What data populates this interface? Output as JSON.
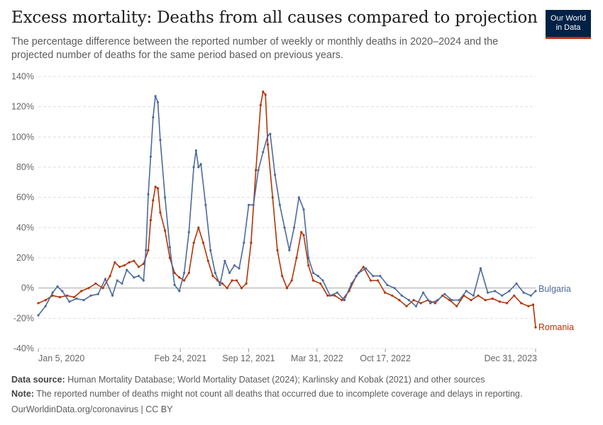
{
  "title": "Excess mortality: Deaths from all causes compared to projection",
  "subtitle": "The percentage difference between the reported number of weekly or monthly deaths in 2020–2024 and the projected number of deaths for the same period based on previous years.",
  "logo": {
    "line1": "Our World",
    "line2": "in Data"
  },
  "footer": {
    "source_label": "Data source:",
    "source_text": "Human Mortality Database; World Mortality Dataset (2024); Karlinsky and Kobak (2021) and other sources",
    "note_label": "Note:",
    "note_text": "The reported number of deaths might not count all deaths that occurred due to incomplete coverage and delays in reporting.",
    "url": "OurWorldinData.org/coronavirus | CC BY"
  },
  "colors": {
    "bulgaria": "#4c6a9c",
    "romania": "#b13507",
    "grid": "#dddddd",
    "zero": "#a8a8a8"
  },
  "chart_data": {
    "type": "line",
    "title": "Excess mortality: Deaths from all causes compared to projection",
    "xlabel": "",
    "ylabel": "",
    "ylim": [
      -40,
      140
    ],
    "xlim": [
      "2020-01-05",
      "2023-12-31"
    ],
    "y_ticks": [
      "140%",
      "120%",
      "100%",
      "80%",
      "60%",
      "40%",
      "20%",
      "0%",
      "-20%",
      "-40%"
    ],
    "x_ticks": [
      {
        "date": "2020-01-05",
        "label": "Jan 5, 2020"
      },
      {
        "date": "2021-02-24",
        "label": "Feb 24, 2021"
      },
      {
        "date": "2021-09-12",
        "label": "Sep 12, 2021"
      },
      {
        "date": "2022-03-31",
        "label": "Mar 31, 2022"
      },
      {
        "date": "2022-10-17",
        "label": "Oct 17, 2022"
      },
      {
        "date": "2023-12-31",
        "label": "Dec 31, 2023"
      }
    ],
    "grid": true,
    "legend": "line-end labels",
    "series": [
      {
        "name": "Bulgaria",
        "points": [
          [
            "2020-01-05",
            -18
          ],
          [
            "2020-01-26",
            -12
          ],
          [
            "2020-02-16",
            -3
          ],
          [
            "2020-03-01",
            1
          ],
          [
            "2020-03-15",
            -2
          ],
          [
            "2020-04-05",
            -9
          ],
          [
            "2020-04-26",
            -7
          ],
          [
            "2020-05-17",
            -8
          ],
          [
            "2020-06-07",
            -5
          ],
          [
            "2020-06-28",
            -4
          ],
          [
            "2020-07-19",
            6
          ],
          [
            "2020-08-09",
            -5
          ],
          [
            "2020-08-23",
            5
          ],
          [
            "2020-09-06",
            3
          ],
          [
            "2020-09-20",
            12
          ],
          [
            "2020-10-11",
            7
          ],
          [
            "2020-10-25",
            8
          ],
          [
            "2020-11-08",
            5
          ],
          [
            "2020-11-15",
            25
          ],
          [
            "2020-11-22",
            62
          ],
          [
            "2020-11-29",
            87
          ],
          [
            "2020-12-06",
            113
          ],
          [
            "2020-12-13",
            127
          ],
          [
            "2020-12-20",
            123
          ],
          [
            "2020-12-27",
            98
          ],
          [
            "2021-01-10",
            60
          ],
          [
            "2021-01-24",
            27
          ],
          [
            "2021-02-07",
            2
          ],
          [
            "2021-02-21",
            -2
          ],
          [
            "2021-03-07",
            10
          ],
          [
            "2021-03-21",
            37
          ],
          [
            "2021-04-04",
            80
          ],
          [
            "2021-04-11",
            91
          ],
          [
            "2021-04-18",
            80
          ],
          [
            "2021-04-25",
            82
          ],
          [
            "2021-05-09",
            55
          ],
          [
            "2021-05-23",
            25
          ],
          [
            "2021-06-06",
            10
          ],
          [
            "2021-06-20",
            2
          ],
          [
            "2021-07-04",
            18
          ],
          [
            "2021-07-18",
            10
          ],
          [
            "2021-08-01",
            15
          ],
          [
            "2021-08-15",
            13
          ],
          [
            "2021-08-29",
            30
          ],
          [
            "2021-09-12",
            55
          ],
          [
            "2021-09-26",
            55
          ],
          [
            "2021-10-10",
            78
          ],
          [
            "2021-10-24",
            90
          ],
          [
            "2021-11-07",
            101
          ],
          [
            "2021-11-14",
            102
          ],
          [
            "2021-11-28",
            75
          ],
          [
            "2021-12-12",
            55
          ],
          [
            "2021-12-26",
            40
          ],
          [
            "2022-01-09",
            25
          ],
          [
            "2022-01-23",
            40
          ],
          [
            "2022-02-06",
            60
          ],
          [
            "2022-02-20",
            52
          ],
          [
            "2022-03-06",
            20
          ],
          [
            "2022-03-20",
            10
          ],
          [
            "2022-04-03",
            8
          ],
          [
            "2022-04-17",
            5
          ],
          [
            "2022-05-08",
            -5
          ],
          [
            "2022-05-29",
            -3
          ],
          [
            "2022-06-19",
            -8
          ],
          [
            "2022-07-10",
            3
          ],
          [
            "2022-07-31",
            10
          ],
          [
            "2022-08-21",
            13
          ],
          [
            "2022-09-11",
            8
          ],
          [
            "2022-10-02",
            8
          ],
          [
            "2022-10-23",
            2
          ],
          [
            "2022-11-13",
            0
          ],
          [
            "2022-12-04",
            -5
          ],
          [
            "2022-12-25",
            -8
          ],
          [
            "2023-01-15",
            -12
          ],
          [
            "2023-02-05",
            -3
          ],
          [
            "2023-02-26",
            -10
          ],
          [
            "2023-03-19",
            -8
          ],
          [
            "2023-04-09",
            -4
          ],
          [
            "2023-04-30",
            -8
          ],
          [
            "2023-05-21",
            -8
          ],
          [
            "2023-06-11",
            -2
          ],
          [
            "2023-07-02",
            -5
          ],
          [
            "2023-07-23",
            13
          ],
          [
            "2023-08-13",
            -3
          ],
          [
            "2023-09-03",
            -2
          ],
          [
            "2023-09-24",
            -5
          ],
          [
            "2023-10-15",
            -2
          ],
          [
            "2023-11-05",
            3
          ],
          [
            "2023-11-26",
            -3
          ],
          [
            "2023-12-17",
            -5
          ],
          [
            "2023-12-31",
            -2
          ]
        ]
      },
      {
        "name": "Romania",
        "points": [
          [
            "2020-01-05",
            -10
          ],
          [
            "2020-01-26",
            -8
          ],
          [
            "2020-02-16",
            -5
          ],
          [
            "2020-03-08",
            -6
          ],
          [
            "2020-03-29",
            -5
          ],
          [
            "2020-04-19",
            -6
          ],
          [
            "2020-05-10",
            -2
          ],
          [
            "2020-05-31",
            0
          ],
          [
            "2020-06-21",
            3
          ],
          [
            "2020-07-12",
            0
          ],
          [
            "2020-08-02",
            8
          ],
          [
            "2020-08-16",
            17
          ],
          [
            "2020-08-30",
            14
          ],
          [
            "2020-09-13",
            15
          ],
          [
            "2020-09-27",
            17
          ],
          [
            "2020-10-11",
            18
          ],
          [
            "2020-10-25",
            14
          ],
          [
            "2020-11-08",
            16
          ],
          [
            "2020-11-22",
            25
          ],
          [
            "2020-11-29",
            45
          ],
          [
            "2020-12-06",
            58
          ],
          [
            "2020-12-13",
            67
          ],
          [
            "2020-12-20",
            66
          ],
          [
            "2020-12-27",
            50
          ],
          [
            "2021-01-10",
            38
          ],
          [
            "2021-01-24",
            20
          ],
          [
            "2021-02-07",
            10
          ],
          [
            "2021-02-21",
            7
          ],
          [
            "2021-03-07",
            5
          ],
          [
            "2021-03-21",
            10
          ],
          [
            "2021-04-04",
            30
          ],
          [
            "2021-04-18",
            40
          ],
          [
            "2021-05-02",
            30
          ],
          [
            "2021-05-16",
            18
          ],
          [
            "2021-05-30",
            8
          ],
          [
            "2021-06-13",
            5
          ],
          [
            "2021-06-27",
            3
          ],
          [
            "2021-07-11",
            0
          ],
          [
            "2021-07-25",
            5
          ],
          [
            "2021-08-08",
            5
          ],
          [
            "2021-08-22",
            0
          ],
          [
            "2021-09-05",
            3
          ],
          [
            "2021-09-19",
            30
          ],
          [
            "2021-10-03",
            78
          ],
          [
            "2021-10-17",
            121
          ],
          [
            "2021-10-24",
            130
          ],
          [
            "2021-10-31",
            128
          ],
          [
            "2021-11-07",
            95
          ],
          [
            "2021-11-21",
            60
          ],
          [
            "2021-12-05",
            25
          ],
          [
            "2021-12-19",
            8
          ],
          [
            "2022-01-02",
            0
          ],
          [
            "2022-01-16",
            5
          ],
          [
            "2022-01-30",
            20
          ],
          [
            "2022-02-13",
            37
          ],
          [
            "2022-02-20",
            35
          ],
          [
            "2022-03-06",
            15
          ],
          [
            "2022-03-20",
            5
          ],
          [
            "2022-04-10",
            3
          ],
          [
            "2022-05-01",
            -5
          ],
          [
            "2022-05-22",
            -5
          ],
          [
            "2022-06-12",
            -8
          ],
          [
            "2022-07-03",
            -2
          ],
          [
            "2022-07-24",
            8
          ],
          [
            "2022-08-14",
            14
          ],
          [
            "2022-09-04",
            5
          ],
          [
            "2022-09-25",
            5
          ],
          [
            "2022-10-16",
            -3
          ],
          [
            "2022-11-06",
            -5
          ],
          [
            "2022-11-27",
            -8
          ],
          [
            "2022-12-18",
            -12
          ],
          [
            "2023-01-08",
            -8
          ],
          [
            "2023-01-29",
            -10
          ],
          [
            "2023-02-19",
            -8
          ],
          [
            "2023-03-12",
            -10
          ],
          [
            "2023-04-02",
            -5
          ],
          [
            "2023-04-23",
            -8
          ],
          [
            "2023-05-14",
            -12
          ],
          [
            "2023-06-04",
            -5
          ],
          [
            "2023-06-25",
            -8
          ],
          [
            "2023-07-16",
            -5
          ],
          [
            "2023-08-06",
            -8
          ],
          [
            "2023-08-27",
            -7
          ],
          [
            "2023-09-17",
            -9
          ],
          [
            "2023-10-08",
            -10
          ],
          [
            "2023-10-29",
            -5
          ],
          [
            "2023-11-19",
            -10
          ],
          [
            "2023-12-10",
            -12
          ],
          [
            "2023-12-24",
            -11
          ],
          [
            "2023-12-31",
            -26
          ]
        ]
      }
    ]
  }
}
